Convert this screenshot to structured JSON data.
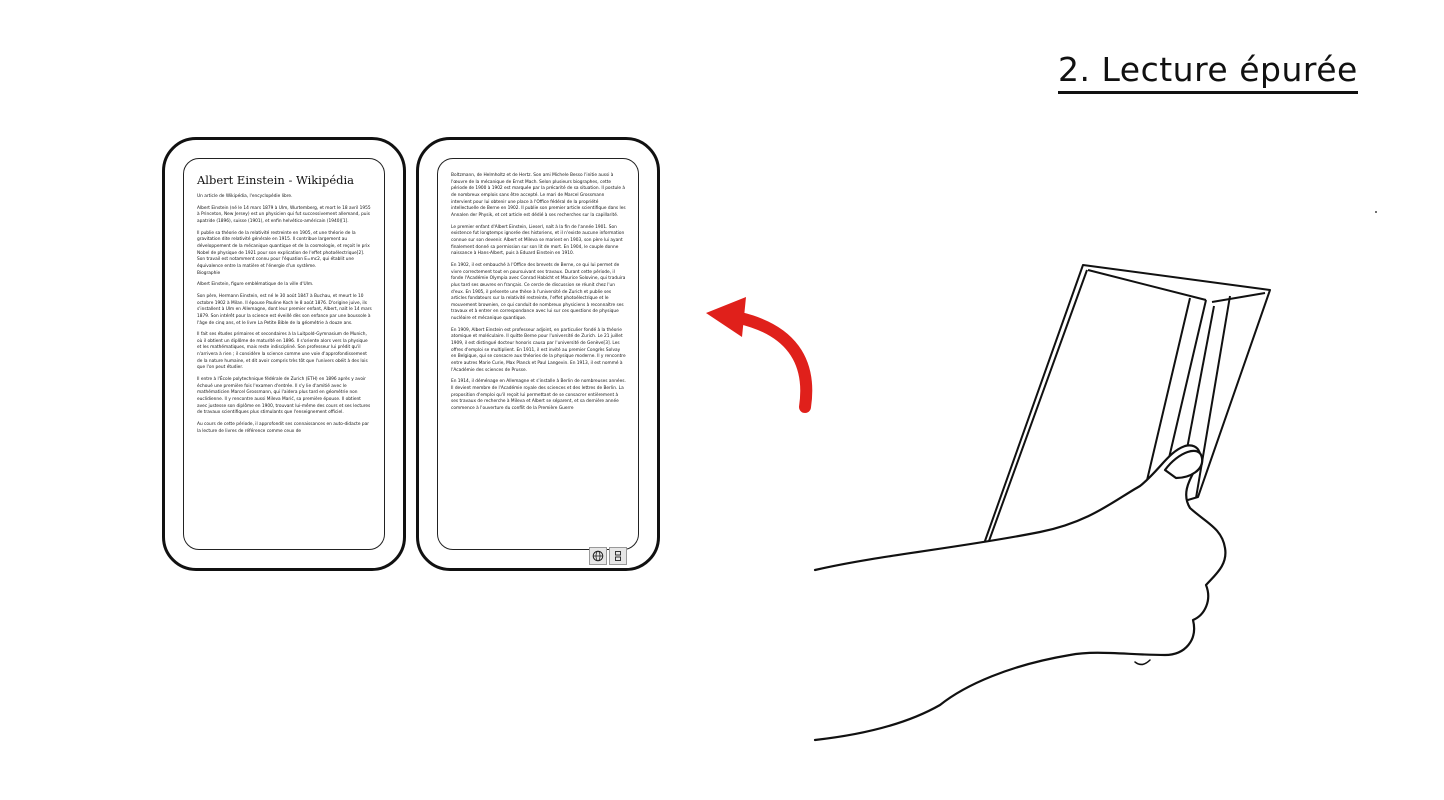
{
  "slide_title": "2. Lecture épurée",
  "left_page": {
    "article_title": "Albert Einstein - Wikipédia",
    "paragraphs": [
      "Un article de Wikipédia, l'encyclopédie libre.",
      "Albert Einstein (né le 14 mars 1879 à Ulm, Wurtemberg, et mort le 18 avril 1955 à Princeton, New Jersey) est un physicien qui fut successivement allemand, puis apatride (1896), suisse (1901), et enfin helvético-américain (1940)[1].",
      "Il publie sa théorie de la relativité restreinte en 1905, et une théorie de la gravitation dite relativité générale en 1915. Il contribue largement au développement de la mécanique quantique et de la cosmologie, et reçoit le prix Nobel de physique de 1921 pour son explication de l'effet photoélectrique[2]. Son travail est notamment connu pour l'équation E=mc2, qui établit une équivalence entre la matière et l'énergie d'un système.",
      "Biographie",
      "Albert Einstein, figure emblématique de la ville d'Ulm.",
      "Son père, Hermann Einstein, est né le 30 août 1847 à Buchau, et meurt le 10 octobre 1902 à Milan. Il épouse Pauline Koch le 8 août 1876. D'origine juive, ils s'installent à Ulm en Allemagne, dont leur premier enfant, Albert, naît le 14 mars 1879. Son intérêt pour la science est éveillé dès son enfance par une boussole à l'âge de cinq ans, et le livre La Petite Bible de la géométrie à douze ans.",
      "Il fait ses études primaires et secondaires à la Luitpold-Gymnasium de Munich, où il obtient un diplôme de maturité en 1896. Il s'oriente alors vers la physique et les mathématiques, mais reste indiscipliné. Son professeur lui prédit qu'il n'arrivera à rien ; il considère la science comme une voie d'approfondissement de la nature humaine, et dit avoir compris très tôt que l'univers obéit à des lois que l'on peut étudier.",
      "Il entre à l'École polytechnique fédérale de Zurich (ETH) en 1896 après y avoir échoué une première fois l'examen d'entrée. Il s'y lie d'amitié avec le mathématicien Marcel Grossmann, qui l'aidera plus tard en géométrie non euclidienne. Il y rencontre aussi Mileva Marić, sa première épouse. Il obtient avec justesse son diplôme en 1900, trouvant lui-même des cours et ses lectures de travaux scientifiques plus stimulants que l'enseignement officiel.",
      "Au cours de cette période, il approfondit ses connaissances en auto-didacte par la lecture de livres de référence comme ceux de"
    ]
  },
  "right_page": {
    "paragraphs": [
      "Boltzmann, de Helmholtz et de Hertz. Son ami Michele Besso l'initie aussi à l'œuvre de la mécanique de Ernst Mach. Selon plusieurs biographes, cette période de 1900 à 1902 est marquée par la précarité de sa situation. Il postule à de nombreux emplois sans être accepté. Le mari de Marcel Grossmann intervient pour lui obtenir une place à l'Office fédéral de la propriété intellectuelle de Berne en 1902. Il publie son premier article scientifique dans les Annalen der Physik, et cet article est dédié à ses recherches sur la capillarité.",
      "Le premier enfant d'Albert Einstein, Lieserl, naît à la fin de l'année 1901. Son existence fut longtemps ignorée des historiens, et il n'existe aucune information connue sur son devenir. Albert et Mileva se marient en 1903, son père lui ayant finalement donné sa permission sur son lit de mort. En 1904, le couple donne naissance à Hans-Albert, puis à Eduard Einstein en 1910.",
      "En 1902, il est embauché à l'Office des brevets de Berne, ce qui lui permet de vivre correctement tout en poursuivant ses travaux. Durant cette période, il fonde l'Académie Olympia avec Conrad Habicht et Maurice Solovine, qui traduira plus tard ses œuvres en français. Ce cercle de discussion se réunit chez l'un d'eux. En 1905, il présente une thèse à l'université de Zurich et publie ses articles fondateurs sur la relativité restreinte, l'effet photoélectrique et le mouvement brownien, ce qui conduit de nombreux physiciens à reconnaître ses travaux et à entrer en correspondance avec lui sur ces questions de physique nucléaire et mécanique quantique.",
      "En 1909, Albert Einstein est professeur adjoint, en particulier fondé à la théorie atomique et moléculaire. Il quitte Berne pour l'université de Zurich. Le 21 juillet 1909, il est distingué docteur honoris causa par l'université de Genève[3]. Les offres d'emploi se multiplient. En 1911, il est invité au premier Congrès Solvay en Belgique, qui se consacre aux théories de la physique moderne. Il y rencontre entre autres Marie Curie, Max Planck et Paul Langevin. En 1913, il est nommé à l'Académie des sciences de Prusse.",
      "En 1914, il déménage en Allemagne et s'installe à Berlin de nombreuses années. Il devient membre de l'Académie royale des sciences et des lettres de Berlin. La proposition d'emploi qu'il reçoit lui permettant de se consacrer entièrement à ses travaux de recherche à Mileva et Albert se séparent, et sa dernière année commence à l'ouverture du conflit de la Première Guerre"
    ]
  },
  "dock": {
    "icons": [
      "globe-icon",
      "menu-icon"
    ]
  }
}
